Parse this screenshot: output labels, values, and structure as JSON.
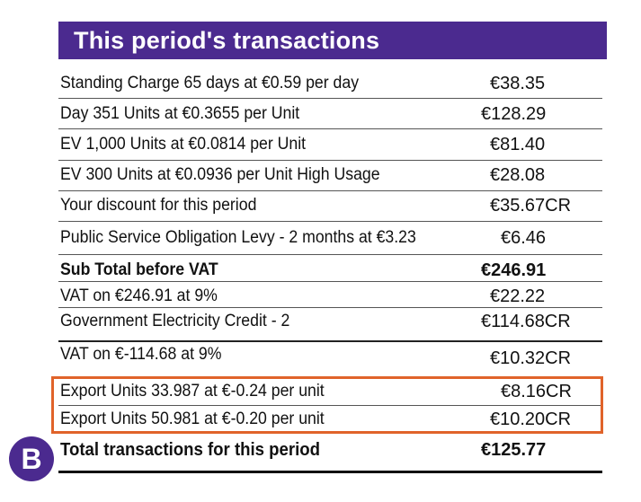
{
  "header": {
    "title": "This period's transactions"
  },
  "rows": [
    {
      "label": "Standing Charge 65 days at €0.59 per day",
      "amount": "€38.35"
    },
    {
      "label": "Day 351 Units at €0.3655 per Unit",
      "amount": "€128.29"
    },
    {
      "label": "EV 1,000 Units at €0.0814 per Unit",
      "amount": "€81.40"
    },
    {
      "label": "EV 300 Units at €0.0936 per Unit High Usage",
      "amount": "€28.08"
    },
    {
      "label": "Your discount for this period",
      "amount": "€35.67CR"
    },
    {
      "label": "Public Service Obligation Levy - 2 months at €3.23",
      "amount": "€6.46"
    },
    {
      "label": "Sub Total before VAT",
      "amount": "€246.91"
    },
    {
      "label": "VAT on €246.91 at 9%",
      "amount": "€22.22"
    },
    {
      "label": "Government Electricity Credit - 2",
      "amount": "€114.68CR"
    },
    {
      "label": "VAT on €-114.68 at 9%",
      "amount": "€10.32CR"
    },
    {
      "label": "Export Units 33.987 at €-0.24 per unit",
      "amount": "€8.16CR"
    },
    {
      "label": "Export Units 50.981 at €-0.20 per unit",
      "amount": "€10.20CR"
    }
  ],
  "total": {
    "label": "Total transactions for this period",
    "amount": "€125.77"
  },
  "logo": {
    "letter": "B"
  },
  "colors": {
    "brand": "#4b2a8f",
    "highlight": "#e0632a"
  }
}
